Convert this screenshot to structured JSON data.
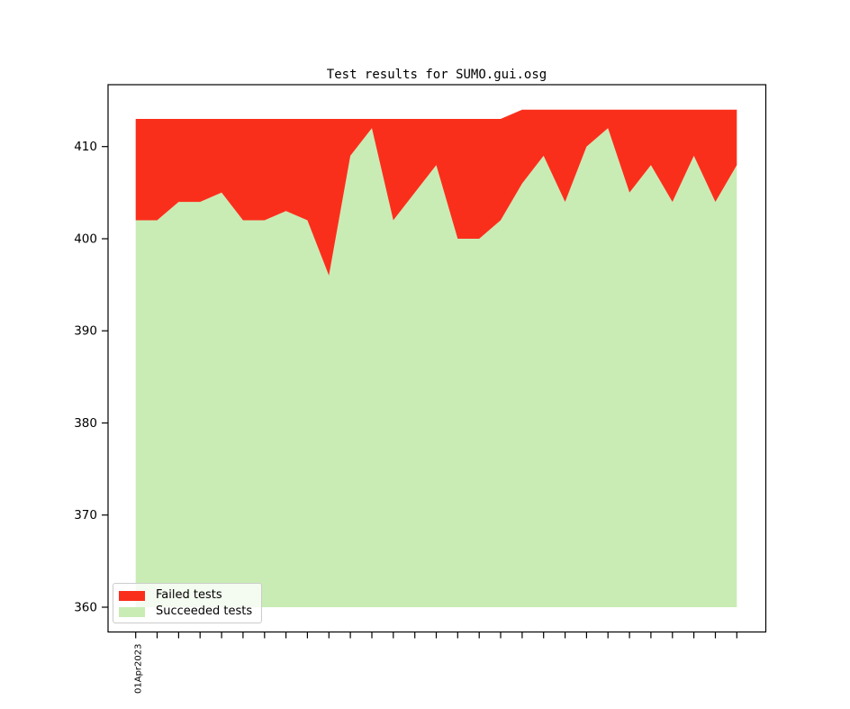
{
  "title": "Test results for SUMO.gui.osg",
  "legend": {
    "items": [
      {
        "label": "Failed tests"
      },
      {
        "label": "Succeeded tests"
      }
    ]
  },
  "chart_data": {
    "type": "area",
    "stacked": true,
    "title": "Test results for SUMO.gui.osg",
    "x_tick_count": 29,
    "x_first_tick_label": "01Apr2023",
    "x_axis_note": "29 daily ticks starting 01Apr2023; only the first tick is labeled",
    "yticks": [
      360,
      370,
      380,
      390,
      400,
      410
    ],
    "ylim": [
      357.3,
      416.7
    ],
    "fill_baseline": 360,
    "grid": false,
    "legend_position": "lower-left",
    "series": [
      {
        "name": "Failed tests",
        "color": "#fa2f1b",
        "values": [
          11,
          11,
          9,
          9,
          8,
          11,
          11,
          10,
          11,
          17,
          4,
          1,
          11,
          8,
          5,
          13,
          13,
          11,
          8,
          5,
          10,
          4,
          2,
          9,
          6,
          10,
          5,
          10,
          6
        ]
      },
      {
        "name": "Succeeded tests",
        "color": "#c9ecb5",
        "values": [
          402,
          402,
          404,
          404,
          405,
          402,
          402,
          403,
          402,
          396,
          409,
          412,
          402,
          405,
          408,
          400,
          400,
          402,
          406,
          409,
          404,
          410,
          412,
          405,
          408,
          404,
          409,
          404,
          408
        ]
      }
    ]
  }
}
